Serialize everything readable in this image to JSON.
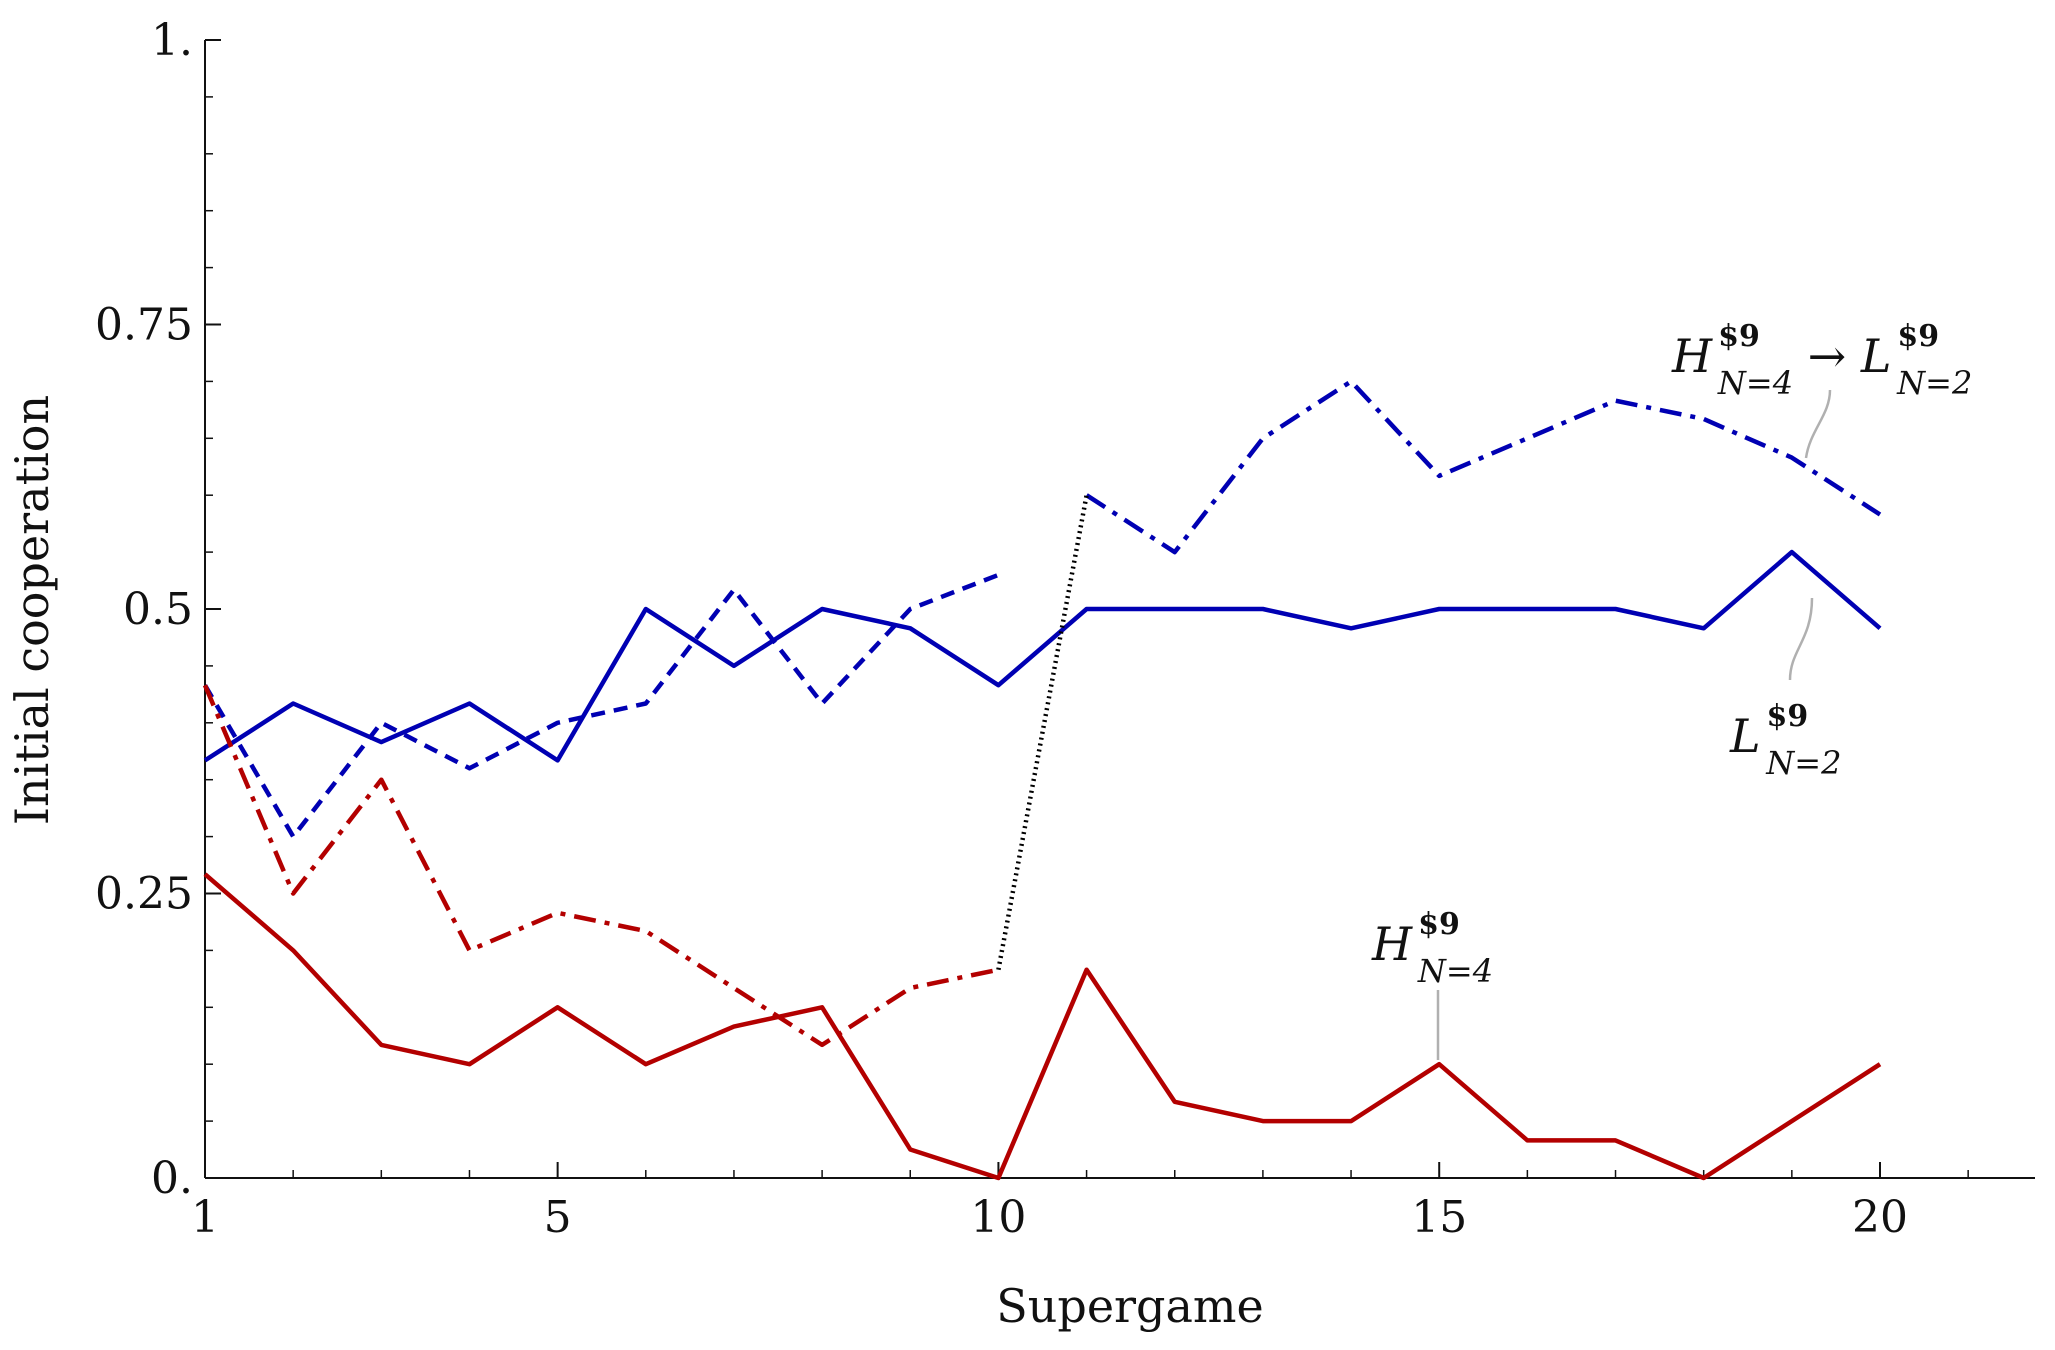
{
  "chart_data": {
    "type": "line",
    "xlabel": "Supergame",
    "ylabel": "Initial cooperation",
    "xlim": [
      1,
      22
    ],
    "ylim": [
      0,
      1
    ],
    "x_ticks": [
      1,
      5,
      10,
      15,
      20
    ],
    "x_tick_labels": [
      "1",
      "5",
      "10",
      "15",
      "20"
    ],
    "y_ticks": [
      0,
      0.25,
      0.5,
      0.75,
      1
    ],
    "y_tick_labels": [
      "0.",
      "0.25",
      "0.5",
      "0.75",
      "1."
    ],
    "grid": false,
    "legend": "none",
    "series": [
      {
        "color": "#0000b3",
        "dash": "solid",
        "x": [
          1,
          2,
          3,
          4,
          5,
          6,
          7,
          8,
          9,
          10,
          11,
          12,
          13,
          14,
          15,
          16,
          17,
          18,
          19,
          20
        ],
        "values": [
          0.367,
          0.417,
          0.383,
          0.417,
          0.367,
          0.5,
          0.45,
          0.5,
          0.483,
          0.433,
          0.5,
          0.5,
          0.5,
          0.483,
          0.5,
          0.5,
          0.5,
          0.483,
          0.55,
          0.483
        ]
      },
      {
        "color": "#0000b3",
        "dash": "dashed",
        "x": [
          1,
          2,
          3,
          4,
          5,
          6,
          7,
          8,
          9,
          10
        ],
        "values": [
          0.433,
          0.3,
          0.4,
          0.36,
          0.4,
          0.417,
          0.517,
          0.417,
          0.5,
          0.53
        ]
      },
      {
        "color": "#0000b3",
        "dash": "dashdot",
        "x": [
          11,
          12,
          13,
          14,
          15,
          16,
          17,
          18,
          19,
          20
        ],
        "values": [
          0.6,
          0.55,
          0.65,
          0.7,
          0.617,
          0.65,
          0.683,
          0.667,
          0.633,
          0.583
        ]
      },
      {
        "color": "#b30000",
        "dash": "solid",
        "x": [
          1,
          2,
          3,
          4,
          5,
          6,
          7,
          8,
          9,
          10,
          11,
          12,
          13,
          14,
          15,
          16,
          17,
          18,
          19,
          20
        ],
        "values": [
          0.267,
          0.2,
          0.117,
          0.1,
          0.15,
          0.1,
          0.133,
          0.15,
          0.025,
          0,
          0.183,
          0.067,
          0.05,
          0.05,
          0.1,
          0.033,
          0.033,
          0,
          0.05,
          0.1
        ]
      },
      {
        "color": "#b30000",
        "dash": "dashdot",
        "x": [
          1,
          2,
          3,
          4,
          5,
          6,
          7,
          8,
          9,
          10
        ],
        "values": [
          0.433,
          0.25,
          0.35,
          0.2,
          0.233,
          0.217,
          0.167,
          0.117,
          0.167,
          0.183
        ]
      },
      {
        "color": "#000000",
        "dash": "dotted",
        "x": [
          10,
          11
        ],
        "values": [
          0.183,
          0.6
        ]
      }
    ],
    "annotations": [
      {
        "id": "h4-to-l2",
        "parts": [
          {
            "text": "H",
            "role": "main"
          },
          {
            "text": "$9",
            "role": "sup"
          },
          {
            "text": "N=4",
            "role": "sub"
          },
          {
            "text": " → ",
            "role": "main-upright"
          },
          {
            "text": "L",
            "role": "main"
          },
          {
            "text": "$9",
            "role": "sup"
          },
          {
            "text": "N=2",
            "role": "sub"
          }
        ],
        "points_to": {
          "x": 19.15,
          "y": 0.63
        }
      },
      {
        "id": "l2",
        "parts": [
          {
            "text": "L",
            "role": "main"
          },
          {
            "text": "$9",
            "role": "sup"
          },
          {
            "text": "N=2",
            "role": "sub"
          }
        ],
        "points_to": {
          "x": 19.3,
          "y": 0.515
        }
      },
      {
        "id": "h4",
        "parts": [
          {
            "text": "H",
            "role": "main"
          },
          {
            "text": "$9",
            "role": "sup"
          },
          {
            "text": "N=4",
            "role": "sub"
          }
        ],
        "points_to": {
          "x": 15,
          "y": 0.1
        }
      }
    ]
  }
}
